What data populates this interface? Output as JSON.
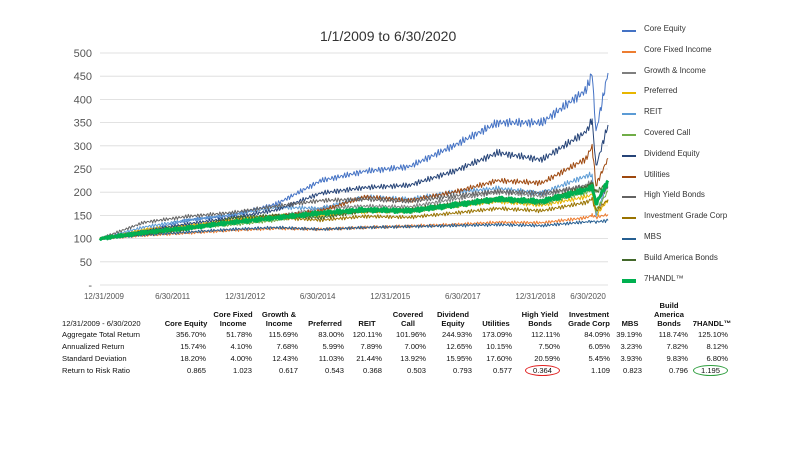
{
  "chart_data": {
    "type": "line",
    "title": "1/1/2009 to 6/30/2020",
    "x_ticks": [
      "12/31/2009",
      "6/30/2011",
      "12/31/2012",
      "6/30/2014",
      "12/31/2015",
      "6/30/2017",
      "12/31/2018",
      "6/30/2020"
    ],
    "y_ticks": [
      "-",
      "50",
      "100",
      "150",
      "200",
      "250",
      "300",
      "350",
      "400",
      "450",
      "500"
    ],
    "ylim": [
      0,
      500
    ],
    "grid": true,
    "legend_position": "right",
    "x": [
      "2009-01-01",
      "2010-01-01",
      "2011-01-01",
      "2012-01-01",
      "2013-01-01",
      "2014-01-01",
      "2015-01-01",
      "2016-01-01",
      "2017-01-01",
      "2018-01-01",
      "2019-01-01",
      "2020-01-01",
      "2020-02-20",
      "2020-03-23",
      "2020-06-30"
    ],
    "series": [
      {
        "name": "Core Equity",
        "color": "#4472c4",
        "values": [
          100,
          118,
          140,
          150,
          175,
          225,
          245,
          255,
          300,
          350,
          350,
          420,
          455,
          330,
          457
        ]
      },
      {
        "name": "Core Fixed Income",
        "color": "#ed7d31",
        "values": [
          100,
          107,
          112,
          118,
          122,
          120,
          124,
          127,
          130,
          135,
          134,
          145,
          150,
          146,
          152
        ]
      },
      {
        "name": "Growth & Income",
        "color": "#7f7f7f",
        "values": [
          100,
          117,
          128,
          135,
          148,
          165,
          170,
          168,
          185,
          200,
          192,
          215,
          222,
          175,
          216
        ]
      },
      {
        "name": "Preferred",
        "color": "#e8b600",
        "values": [
          100,
          120,
          128,
          140,
          150,
          150,
          158,
          160,
          170,
          180,
          172,
          190,
          195,
          150,
          183
        ]
      },
      {
        "name": "REIT",
        "color": "#5b9bd5",
        "values": [
          100,
          125,
          140,
          152,
          168,
          165,
          190,
          185,
          200,
          208,
          198,
          235,
          238,
          150,
          220
        ]
      },
      {
        "name": "Covered Call",
        "color": "#70ad47",
        "values": [
          100,
          116,
          124,
          130,
          140,
          155,
          160,
          158,
          170,
          185,
          175,
          200,
          205,
          160,
          202
        ]
      },
      {
        "name": "Dividend Equity",
        "color": "#264478",
        "values": [
          100,
          116,
          132,
          145,
          162,
          198,
          210,
          215,
          245,
          285,
          270,
          330,
          355,
          255,
          345
        ]
      },
      {
        "name": "Utilities",
        "color": "#9e480e",
        "values": [
          100,
          110,
          122,
          138,
          148,
          160,
          190,
          182,
          200,
          225,
          220,
          272,
          300,
          215,
          273
        ]
      },
      {
        "name": "High Yield Bonds",
        "color": "#636363",
        "values": [
          100,
          135,
          148,
          156,
          170,
          182,
          185,
          180,
          192,
          202,
          198,
          212,
          218,
          180,
          212
        ]
      },
      {
        "name": "Investment Grade Corp",
        "color": "#997300",
        "values": [
          100,
          114,
          122,
          135,
          145,
          140,
          148,
          146,
          155,
          165,
          160,
          178,
          185,
          160,
          184
        ]
      },
      {
        "name": "MBS",
        "color": "#255e91",
        "values": [
          100,
          108,
          114,
          120,
          124,
          120,
          124,
          126,
          128,
          130,
          128,
          136,
          138,
          136,
          139
        ]
      },
      {
        "name": "Build America Bonds",
        "color": "#43682b",
        "values": [
          100,
          110,
          120,
          145,
          150,
          145,
          160,
          162,
          175,
          185,
          180,
          210,
          220,
          200,
          219
        ]
      },
      {
        "name": "7HANDL™",
        "color": "#00b050",
        "values": [
          100,
          113,
          123,
          135,
          145,
          155,
          162,
          160,
          172,
          185,
          180,
          205,
          212,
          175,
          225
        ]
      }
    ]
  },
  "table": {
    "period_label": "12/31/2009 - 6/30/2020",
    "columns": [
      "Core Equity",
      "Core Fixed Income",
      "Growth & Income",
      "Preferred",
      "REIT",
      "Covered Call",
      "Dividend Equity",
      "Utilities",
      "High Yield Bonds",
      "Investment Grade Corp",
      "MBS",
      "Build America Bonds",
      "7HANDL™"
    ],
    "rows": [
      {
        "label": "Aggregate Total Return",
        "values": [
          "356.70%",
          "51.78%",
          "115.69%",
          "83.00%",
          "120.11%",
          "101.96%",
          "244.93%",
          "173.09%",
          "112.11%",
          "84.09%",
          "39.19%",
          "118.74%",
          "125.10%"
        ]
      },
      {
        "label": "Annualized Return",
        "values": [
          "15.74%",
          "4.10%",
          "7.68%",
          "5.99%",
          "7.89%",
          "7.00%",
          "12.65%",
          "10.15%",
          "7.50%",
          "6.05%",
          "3.23%",
          "7.82%",
          "8.12%"
        ]
      },
      {
        "label": "Standard Deviation",
        "values": [
          "18.20%",
          "4.00%",
          "12.43%",
          "11.03%",
          "21.44%",
          "13.92%",
          "15.95%",
          "17.60%",
          "20.59%",
          "5.45%",
          "3.93%",
          "9.83%",
          "6.80%"
        ]
      },
      {
        "label": "Return to Risk Ratio",
        "values": [
          "0.865",
          "1.023",
          "0.617",
          "0.543",
          "0.368",
          "0.503",
          "0.793",
          "0.577",
          "0.364",
          "1.109",
          "0.823",
          "0.796",
          "1.195"
        ]
      }
    ],
    "highlights": [
      {
        "row": 3,
        "col": 8,
        "color": "#e02020"
      },
      {
        "row": 3,
        "col": 12,
        "color": "#2e9e3e"
      }
    ]
  }
}
